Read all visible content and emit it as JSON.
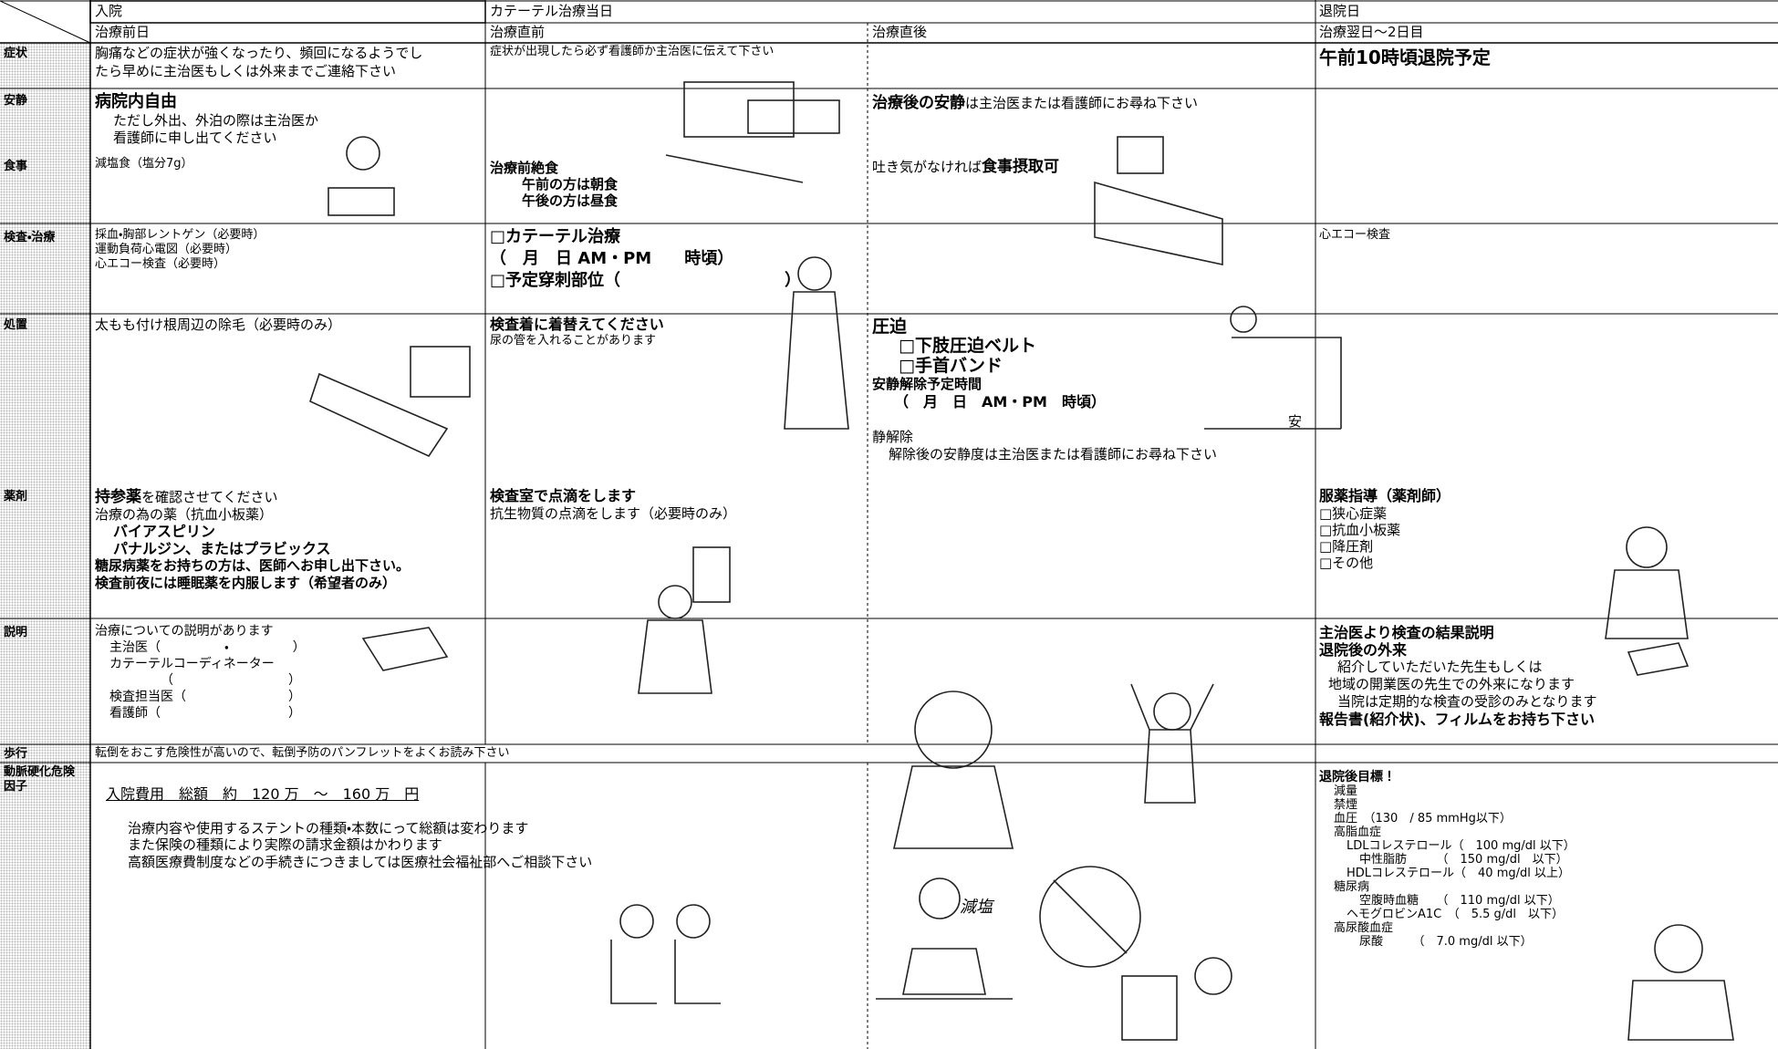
{
  "header": {
    "admission": "入院",
    "catheter_day": "カテーテル治療当日",
    "discharge_day": "退院日",
    "day_before": "治療前日",
    "just_before": "治療直前",
    "just_after": "治療直後",
    "day_after": "治療翌日〜2日目"
  },
  "symptoms": {
    "label": "症状",
    "day_before": [
      "胸痛などの症状が強くなったり、頻回になるようでし",
      "たら早めに主治医もしくは外来までご連絡下さい"
    ],
    "just_before": "症状が出現したら必ず看護師か主治医に伝えて下さい",
    "day_after": "午前10時頃退院予定"
  },
  "rest_meal": {
    "labels": [
      "安静",
      "食事"
    ],
    "day_before": [
      "病院内自由",
      "ただし外出、外泊の際は主治医か",
      "看護師に申し出てください",
      "減塩食（塩分7g）"
    ],
    "just_before": [
      "治療前絶食",
      "午前の方は朝食",
      "午後の方は昼食"
    ],
    "just_after": [
      [
        "治療後の安静",
        "は主治医または看護師にお尋ね下さい"
      ],
      [
        "吐き気がなければ",
        "食事摂取可"
      ]
    ]
  },
  "exam": {
    "label": "検査・治療",
    "day_before": [
      "採血・胸部レントゲン（必要時）",
      "運動負荷心電図（必要時）",
      "心エコー検査（必要時）"
    ],
    "just_before": [
      "□カテーテル治療",
      "（　月　日 AM・PM　　時頃）",
      "□予定穿刺部位（　　　　　　　　　　）"
    ],
    "day_after": "心エコー検査"
  },
  "treatment_drug": {
    "labels": [
      "処置",
      "薬剤"
    ],
    "day_before": [
      "太もも付け根周辺の除毛（必要時のみ）",
      [
        "持参薬",
        "を確認させてください"
      ],
      "治療の為の薬（抗血小板薬）",
      "バイアスピリン",
      "パナルジン、またはプラビックス",
      "糖尿病薬をお持ちの方は、医師へお申し出下さい。",
      "検査前夜には睡眠薬を内服します（希望者のみ）"
    ],
    "just_before": [
      "検査着に着替えてください",
      "尿の管を入れることがあります",
      "検査室で点滴をします",
      "抗生物質の点滴をします（必要時のみ）"
    ],
    "just_after": [
      "圧迫",
      "□下肢圧迫ベルト",
      "□手首バンド",
      "安静解除予定時間",
      "（　月　日　AM・PM　時頃）",
      "安",
      "静解除",
      "解除後の安静度は主治医または看護師にお尋ね下さい"
    ],
    "day_after": [
      "服薬指導（薬剤師）",
      "□狭心症薬",
      "□抗血小板薬",
      "□降圧剤",
      "□その他"
    ]
  },
  "explanation": {
    "label": "説明",
    "day_before": [
      "治療についての説明があります",
      "主治医（　　　　　・　　　　　）",
      "カテーテルコーディネーター",
      "（　　　　　　　　　）",
      "検査担当医（　　　　　　　　）",
      "看護師（　　　　　　　　　　）"
    ],
    "day_after": [
      "主治医より検査の結果説明",
      "退院後の外来",
      "紹介していただいた先生もしくは",
      "地域の開業医の先生での外来になります",
      "当院は定期的な検査の受診のみとなります",
      "報告書(紹介状)、フィルムをお持ち下さい"
    ]
  },
  "walking": {
    "label": "歩行",
    "text": "転倒をおこす危険性が高いので、転倒予防のパンフレットをよくお読み下さい"
  },
  "risk": {
    "label": "動脈硬化危険因子",
    "day_before": [
      "入院費用　総額　約　120 万　～　160 万　円",
      "治療内容や使用するステントの種類・本数にって総額は変わります",
      "また保険の種類により実際の請求金額はかわります",
      "高額医療費制度などの手続きにつきましては医療社会福祉部へご相談下さい"
    ],
    "illustration_text": "減塩",
    "day_after": [
      "退院後目標！",
      "減量",
      "禁煙",
      "血圧　（130　/ 85 mmHg以下）",
      "高脂血症",
      "LDLコレステロール（　100 mg/dl 以下）",
      "中性脂肪　　　（　150 mg/dl　以下）",
      "HDLコレステロール（　40 mg/dl 以上）",
      "糖尿病",
      "空腹時血糖　　（　110 mg/dl 以下）",
      "ヘモグロビンA1C　（　5.5 g/dl　以下）",
      "高尿酸血症",
      "尿酸　　　（　7.0 mg/dl 以下）"
    ]
  }
}
